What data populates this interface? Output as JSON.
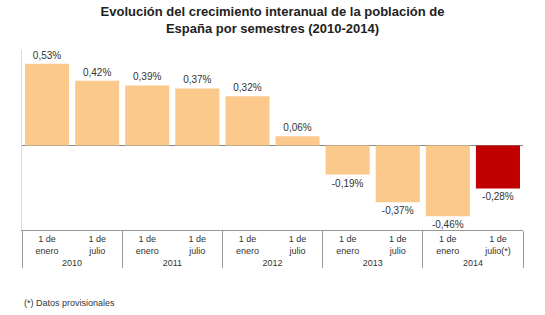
{
  "chart_data": {
    "type": "bar",
    "title": "Evolución del crecimiento interanual de la población de\nEspaña por semestres (2010-2014)",
    "categories": [
      "1 de enero",
      "1 de julio",
      "1 de enero",
      "1 de julio",
      "1 de enero",
      "1 de julio",
      "1 de enero",
      "1 de julio",
      "1 de enero",
      "1 de julio(*)"
    ],
    "groups": [
      "2010",
      "2010",
      "2011",
      "2011",
      "2012",
      "2012",
      "2013",
      "2013",
      "2014",
      "2014"
    ],
    "values": [
      0.53,
      0.42,
      0.39,
      0.37,
      0.32,
      0.06,
      -0.19,
      -0.37,
      -0.46,
      -0.28
    ],
    "value_labels": [
      "0,53%",
      "0,42%",
      "0,39%",
      "0,37%",
      "0,32%",
      "0,06%",
      "-0,19%",
      "-0,37%",
      "-0,46%",
      "-0,28%"
    ],
    "colors": [
      "#fcc98c",
      "#fcc98c",
      "#fcc98c",
      "#fcc98c",
      "#fcc98c",
      "#fcc98c",
      "#fcc98c",
      "#fcc98c",
      "#fcc98c",
      "#c00000"
    ],
    "ylim": [
      -0.55,
      0.62
    ],
    "data_labels": true,
    "tick_labels": "x",
    "grid": false,
    "annotations": [
      "(*) Datos provisionales"
    ]
  }
}
